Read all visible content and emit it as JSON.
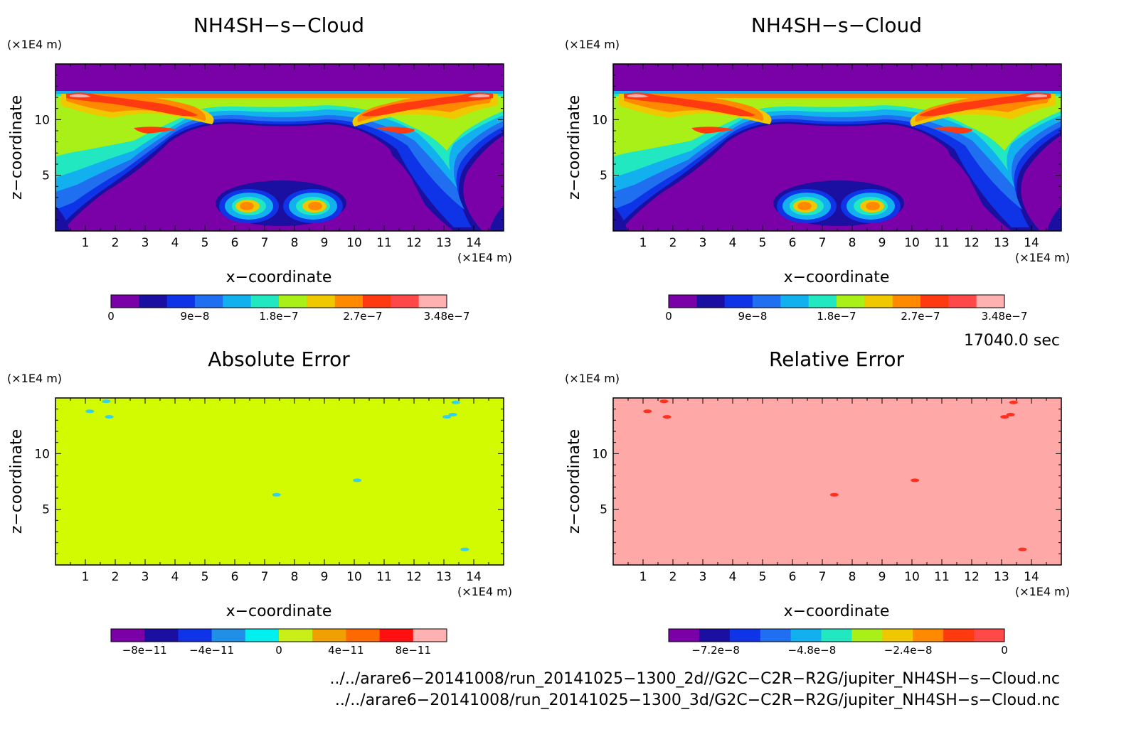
{
  "chart_data": [
    {
      "type": "heatmap",
      "title": "NH4SH−s−Cloud",
      "xlabel": "x−coordinate",
      "ylabel": "z−coordinate",
      "xunit": "(×1E4 m)",
      "yunit": "(×1E4 m)",
      "xlim": [
        0,
        15
      ],
      "ylim": [
        0,
        15
      ],
      "xticks": [
        "1",
        "2",
        "3",
        "4",
        "5",
        "6",
        "7",
        "8",
        "9",
        "10",
        "11",
        "12",
        "13",
        "14"
      ],
      "yticks": [
        "5",
        "10"
      ],
      "colorbar_labels": [
        "0",
        "9e−8",
        "1.8e−7",
        "2.7e−7",
        "3.48e−7"
      ],
      "colors": [
        "#7a00a8",
        "#1a0fa0",
        "#0f33e6",
        "#1f6ff0",
        "#13b0f0",
        "#21e8c0",
        "#a8f018",
        "#f0c800",
        "#ff8a00",
        "#ff3a10",
        "#ff4848",
        "#ffb0b0"
      ]
    },
    {
      "type": "heatmap",
      "title": "NH4SH−s−Cloud",
      "xlabel": "x−coordinate",
      "ylabel": "z−coordinate",
      "xunit": "(×1E4 m)",
      "yunit": "(×1E4 m)",
      "xlim": [
        0,
        15
      ],
      "ylim": [
        0,
        15
      ],
      "xticks": [
        "1",
        "2",
        "3",
        "4",
        "5",
        "6",
        "7",
        "8",
        "9",
        "10",
        "11",
        "12",
        "13",
        "14"
      ],
      "yticks": [
        "5",
        "10"
      ],
      "colorbar_labels": [
        "0",
        "9e−8",
        "1.8e−7",
        "2.7e−7",
        "3.48e−7"
      ],
      "colors": [
        "#7a00a8",
        "#1a0fa0",
        "#0f33e6",
        "#1f6ff0",
        "#13b0f0",
        "#21e8c0",
        "#a8f018",
        "#f0c800",
        "#ff8a00",
        "#ff3a10",
        "#ff4848",
        "#ffb0b0"
      ]
    },
    {
      "type": "heatmap",
      "title": "Absolute Error",
      "xlabel": "x−coordinate",
      "ylabel": "z−coordinate",
      "xunit": "(×1E4 m)",
      "yunit": "(×1E4 m)",
      "xlim": [
        0,
        15
      ],
      "ylim": [
        0,
        15
      ],
      "xticks": [
        "1",
        "2",
        "3",
        "4",
        "5",
        "6",
        "7",
        "8",
        "9",
        "10",
        "11",
        "12",
        "13",
        "14"
      ],
      "yticks": [
        "5",
        "10"
      ],
      "background_color": "#d2fa00",
      "spot_color": "#33d0f0",
      "colorbar_labels": [
        "−8e−11",
        "−4e−11",
        "0",
        "4e−11",
        "8e−11"
      ],
      "colors": [
        "#7a00a8",
        "#1a0fa0",
        "#0f33e6",
        "#1f8fe8",
        "#00f0f0",
        "#c8f018",
        "#f0a000",
        "#ff6a00",
        "#ff1010",
        "#ffb0b0"
      ]
    },
    {
      "type": "heatmap",
      "title": "Relative Error",
      "xlabel": "x−coordinate",
      "ylabel": "z−coordinate",
      "xunit": "(×1E4 m)",
      "yunit": "(×1E4 m)",
      "xlim": [
        0,
        15
      ],
      "ylim": [
        0,
        15
      ],
      "xticks": [
        "1",
        "2",
        "3",
        "4",
        "5",
        "6",
        "7",
        "8",
        "9",
        "10",
        "11",
        "12",
        "13",
        "14"
      ],
      "yticks": [
        "5",
        "10"
      ],
      "background_color": "#ffa8a8",
      "spot_color": "#ff3020",
      "colorbar_labels": [
        "−7.2e−8",
        "−4.8e−8",
        "−2.4e−8",
        "0"
      ],
      "colors": [
        "#7a00a8",
        "#1a0fa0",
        "#0f33e6",
        "#1f6ff0",
        "#13b0f0",
        "#21e8c0",
        "#a8f018",
        "#f0c800",
        "#ff8a00",
        "#ff3a10",
        "#ff4848"
      ]
    }
  ],
  "time_label": "17040.0 sec",
  "footer": {
    "file1": "../../arare6−20141008/run_20141025−1300_2d//G2C−C2R−R2G/jupiter_NH4SH−s−Cloud.nc",
    "file2": "../../arare6−20141008/run_20141025−1300_3d/G2C−C2R−R2G/jupiter_NH4SH−s−Cloud.nc"
  }
}
